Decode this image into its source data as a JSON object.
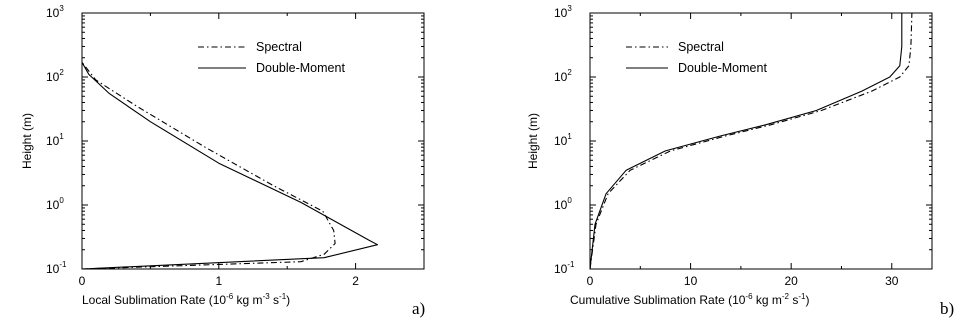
{
  "chart_data": [
    {
      "type": "line",
      "panel_label": "a)",
      "xlabel": "Local Sublimation Rate (10⁻⁶ kg m⁻³ s⁻¹)",
      "xlabel_parts": [
        "Local Sublimation Rate (10",
        "-6",
        " kg m",
        "-3",
        " s",
        "-1",
        ")"
      ],
      "ylabel": "Height (m)",
      "xlim": [
        0,
        2.5
      ],
      "ylim": [
        0.1,
        1000
      ],
      "yscale": "log",
      "x_ticks": [
        0,
        1,
        2
      ],
      "x_tick_labels": [
        "0",
        "1",
        "2"
      ],
      "y_ticks": [
        0.1,
        1,
        10,
        100,
        1000
      ],
      "y_tick_labels": [
        {
          "base": "10",
          "exp": "-1"
        },
        {
          "base": "10",
          "exp": "0"
        },
        {
          "base": "10",
          "exp": "1"
        },
        {
          "base": "10",
          "exp": "2"
        },
        {
          "base": "10",
          "exp": "3"
        }
      ],
      "legend_position": "top-right",
      "series": [
        {
          "name": "Spectral",
          "style": "dash-dot",
          "x": [
            0.0,
            1.6,
            1.77,
            1.85,
            1.84,
            1.76,
            1.4,
            0.9,
            0.4,
            0.1,
            0.0
          ],
          "y": [
            0.1,
            0.13,
            0.17,
            0.25,
            0.4,
            0.8,
            2,
            8,
            35,
            90,
            170
          ]
        },
        {
          "name": "Double-Moment",
          "style": "solid",
          "x": [
            0.0,
            1.77,
            2.16,
            2.1,
            1.6,
            1.0,
            0.5,
            0.2,
            0.05,
            0.0
          ],
          "y": [
            0.1,
            0.15,
            0.24,
            0.28,
            1.1,
            4.5,
            20,
            55,
            110,
            170
          ]
        }
      ]
    },
    {
      "type": "line",
      "panel_label": "b)",
      "xlabel": "Cumulative Sublimation Rate (10⁻⁶ kg m⁻² s⁻¹)",
      "xlabel_parts": [
        "Cumulative Sublimation Rate (10",
        "-6",
        " kg m",
        "-2",
        " s",
        "-1",
        ")"
      ],
      "ylabel": "Height (m)",
      "xlim": [
        0,
        34
      ],
      "ylim": [
        0.1,
        1000
      ],
      "yscale": "log",
      "x_ticks": [
        0,
        10,
        20,
        30
      ],
      "x_tick_labels": [
        "0",
        "10",
        "20",
        "30"
      ],
      "y_ticks": [
        0.1,
        1,
        10,
        100,
        1000
      ],
      "y_tick_labels": [
        {
          "base": "10",
          "exp": "-1"
        },
        {
          "base": "10",
          "exp": "0"
        },
        {
          "base": "10",
          "exp": "1"
        },
        {
          "base": "10",
          "exp": "2"
        },
        {
          "base": "10",
          "exp": "3"
        }
      ],
      "legend_position": "top-left",
      "series": [
        {
          "name": "Spectral",
          "style": "dash-dot",
          "x": [
            0.0,
            0.6,
            1.8,
            4.0,
            8.0,
            13.5,
            18.0,
            23.0,
            28.0,
            30.8,
            31.7,
            31.9,
            32.0
          ],
          "y": [
            0.1,
            0.5,
            1.5,
            3.5,
            7,
            12,
            18,
            30,
            60,
            100,
            150,
            300,
            1000
          ]
        },
        {
          "name": "Double-Moment",
          "style": "solid",
          "x": [
            0.0,
            0.5,
            1.6,
            3.6,
            7.5,
            13.0,
            17.5,
            22.5,
            27.0,
            29.8,
            30.8,
            31.0,
            31.0
          ],
          "y": [
            0.1,
            0.5,
            1.5,
            3.5,
            7,
            12,
            18,
            30,
            60,
            100,
            150,
            300,
            1000
          ]
        }
      ]
    }
  ]
}
